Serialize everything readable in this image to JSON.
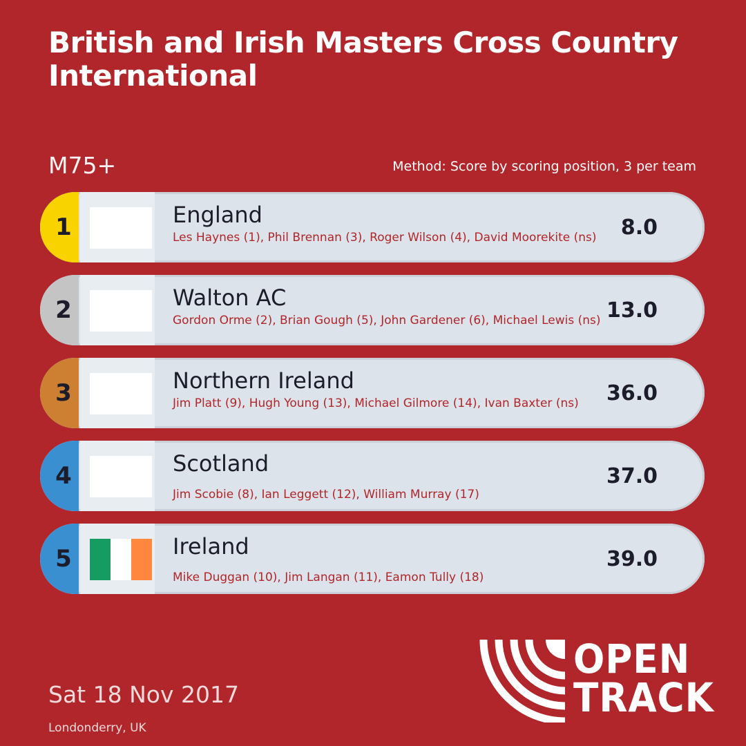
{
  "title": "British and Irish Masters Cross Country International",
  "category": "M75+",
  "method": "Method: Score by scoring position, 3 per team",
  "results": [
    {
      "rank": "1",
      "team": "England",
      "members": "Les Haynes (1), Phil Brennan (3), Roger Wilson (4), David Moorekite (ns)",
      "score": "8.0",
      "rank_color": "#f8d300"
    },
    {
      "rank": "2",
      "team": "Walton AC",
      "members": "Gordon Orme (2), Brian Gough (5), John Gardener (6), Michael Lewis (ns)",
      "score": "13.0",
      "rank_color": "#c4c4c4"
    },
    {
      "rank": "3",
      "team": "Northern Ireland",
      "members": "Jim Platt (9), Hugh Young (13), Michael Gilmore (14), Ivan Baxter (ns)",
      "score": "36.0",
      "rank_color": "#cd7f32"
    },
    {
      "rank": "4",
      "team": "Scotland",
      "members": "Jim Scobie (8), Ian Leggett (12), William Murray (17)",
      "score": "37.0",
      "rank_color": "#3a8fd1"
    },
    {
      "rank": "5",
      "team": "Ireland",
      "members": "Mike Duggan (10), Jim Langan (11), Eamon Tully (18)",
      "score": "39.0",
      "rank_color": "#3a8fd1",
      "flag": "ireland-flag"
    }
  ],
  "flag_colors": {
    "ireland": [
      "#169b62",
      "#ffffff",
      "#ff883e"
    ]
  },
  "date": "Sat 18 Nov 2017",
  "location": "Londonderry, UK",
  "logo": {
    "line1": "OPEN",
    "line2": "TRACK"
  }
}
